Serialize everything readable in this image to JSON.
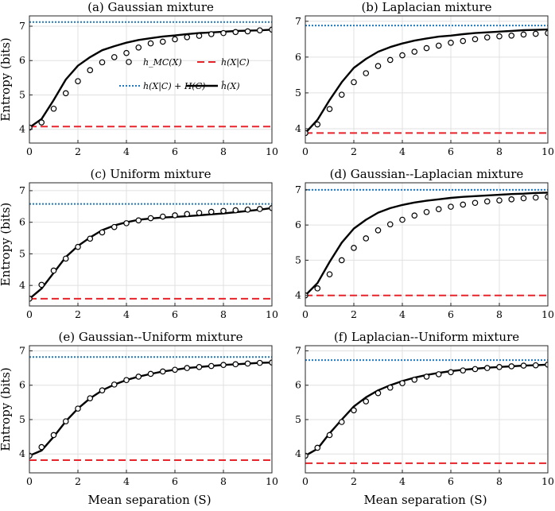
{
  "chart_data": {
    "type": "line",
    "xlabel": "Mean separation (S)",
    "ylabel": "Entropy (bits)",
    "xlim": [
      0,
      10
    ],
    "xticks": [
      0,
      2,
      4,
      6,
      8,
      10
    ],
    "legend": {
      "placement": "inside panel (a), center-right",
      "entries": [
        {
          "key": "mc",
          "label": "h_MC(X)",
          "style": "circle markers"
        },
        {
          "key": "cond",
          "label": "h(X|C)",
          "style": "red dashed"
        },
        {
          "key": "bound",
          "label": "h(X|C) + H(C)",
          "style": "blue dotted"
        },
        {
          "key": "approx",
          "label": "ĥ(X)",
          "style": "black solid"
        }
      ]
    },
    "colors": {
      "mc": "#000000",
      "approx": "#000000",
      "cond": "#e8232a",
      "bound": "#1f7ac0",
      "grid": "#e0e0e0"
    },
    "x": [
      0,
      0.5,
      1,
      1.5,
      2,
      2.5,
      3,
      3.5,
      4,
      4.5,
      5,
      5.5,
      6,
      6.5,
      7,
      7.5,
      8,
      8.5,
      9,
      9.5,
      10
    ],
    "panels": [
      {
        "id": "a",
        "title": "(a) Gaussian mixture",
        "ylim": [
          3.6,
          7.3
        ],
        "yticks": [
          4,
          5,
          6,
          7
        ],
        "mc": [
          4.05,
          4.2,
          4.6,
          5.05,
          5.4,
          5.72,
          5.95,
          6.1,
          6.22,
          6.38,
          6.5,
          6.55,
          6.62,
          6.68,
          6.72,
          6.77,
          6.8,
          6.83,
          6.85,
          6.88,
          6.9
        ],
        "approx": [
          4.05,
          4.3,
          4.85,
          5.45,
          5.85,
          6.1,
          6.3,
          6.42,
          6.52,
          6.6,
          6.65,
          6.7,
          6.73,
          6.77,
          6.8,
          6.82,
          6.84,
          6.86,
          6.87,
          6.88,
          6.9
        ],
        "cond": 4.08,
        "bound": 7.12
      },
      {
        "id": "b",
        "title": "(b) Laplacian mixture",
        "ylim": [
          3.6,
          7.15
        ],
        "yticks": [
          4,
          5,
          6,
          7
        ],
        "mc": [
          3.88,
          4.12,
          4.55,
          4.95,
          5.3,
          5.55,
          5.75,
          5.92,
          6.05,
          6.15,
          6.25,
          6.32,
          6.4,
          6.45,
          6.5,
          6.55,
          6.58,
          6.6,
          6.63,
          6.65,
          6.67
        ],
        "approx": [
          3.88,
          4.25,
          4.8,
          5.3,
          5.7,
          5.95,
          6.15,
          6.28,
          6.38,
          6.46,
          6.52,
          6.57,
          6.6,
          6.64,
          6.67,
          6.69,
          6.71,
          6.73,
          6.75,
          6.76,
          6.77
        ],
        "cond": 3.88,
        "bound": 6.88
      },
      {
        "id": "c",
        "title": "(c) Uniform mixture",
        "ylim": [
          3.35,
          7.25
        ],
        "yticks": [
          4,
          5,
          6,
          7
        ],
        "mc": [
          3.58,
          4.02,
          4.47,
          4.85,
          5.22,
          5.48,
          5.68,
          5.85,
          5.97,
          6.06,
          6.13,
          6.18,
          6.22,
          6.26,
          6.3,
          6.33,
          6.36,
          6.38,
          6.4,
          6.42,
          6.45
        ],
        "approx": [
          3.58,
          3.9,
          4.4,
          4.9,
          5.25,
          5.52,
          5.75,
          5.9,
          6.0,
          6.08,
          6.12,
          6.15,
          6.17,
          6.19,
          6.22,
          6.25,
          6.28,
          6.32,
          6.36,
          6.4,
          6.45
        ],
        "cond": 3.58,
        "bound": 6.58
      },
      {
        "id": "d",
        "title": "(d) Gaussian--Laplacian mixture",
        "ylim": [
          3.7,
          7.2
        ],
        "yticks": [
          4,
          5,
          6,
          7
        ],
        "mc": [
          4.0,
          4.2,
          4.6,
          5.0,
          5.35,
          5.62,
          5.85,
          6.02,
          6.15,
          6.27,
          6.37,
          6.45,
          6.52,
          6.58,
          6.63,
          6.67,
          6.7,
          6.73,
          6.76,
          6.78,
          6.8
        ],
        "approx": [
          4.0,
          4.35,
          4.95,
          5.5,
          5.9,
          6.15,
          6.35,
          6.48,
          6.57,
          6.64,
          6.69,
          6.73,
          6.77,
          6.8,
          6.82,
          6.84,
          6.86,
          6.88,
          6.89,
          6.91,
          6.92
        ],
        "cond": 4.0,
        "bound": 7.0
      },
      {
        "id": "e",
        "title": "(e) Gaussian--Uniform mixture",
        "ylim": [
          3.45,
          7.15
        ],
        "yticks": [
          4,
          5,
          6,
          7
        ],
        "mc": [
          3.95,
          4.2,
          4.55,
          4.95,
          5.32,
          5.62,
          5.85,
          6.02,
          6.15,
          6.25,
          6.33,
          6.4,
          6.45,
          6.5,
          6.53,
          6.56,
          6.59,
          6.61,
          6.63,
          6.65,
          6.66
        ],
        "approx": [
          3.95,
          4.1,
          4.5,
          4.95,
          5.32,
          5.62,
          5.85,
          6.02,
          6.15,
          6.25,
          6.33,
          6.4,
          6.45,
          6.5,
          6.53,
          6.56,
          6.59,
          6.61,
          6.63,
          6.65,
          6.66
        ],
        "cond": 3.82,
        "bound": 6.82
      },
      {
        "id": "f",
        "title": "(f) Laplacian--Uniform mixture",
        "ylim": [
          3.45,
          7.15
        ],
        "yticks": [
          4,
          5,
          6,
          7
        ],
        "mc": [
          3.95,
          4.18,
          4.55,
          4.93,
          5.27,
          5.53,
          5.77,
          5.93,
          6.06,
          6.16,
          6.25,
          6.32,
          6.38,
          6.43,
          6.47,
          6.5,
          6.53,
          6.55,
          6.57,
          6.58,
          6.6
        ],
        "approx": [
          3.95,
          4.15,
          4.6,
          5.0,
          5.38,
          5.65,
          5.85,
          6.0,
          6.12,
          6.22,
          6.3,
          6.36,
          6.41,
          6.45,
          6.48,
          6.51,
          6.53,
          6.55,
          6.57,
          6.58,
          6.6
        ],
        "cond": 3.73,
        "bound": 6.73
      }
    ]
  }
}
